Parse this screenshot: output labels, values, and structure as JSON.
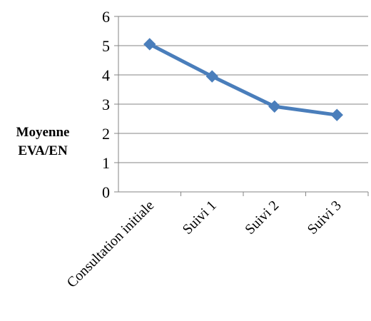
{
  "chart_data": {
    "type": "line",
    "categories": [
      "Consultation initiale",
      "Suivi 1",
      "Suivi 2",
      "Suivi 3"
    ],
    "series": [
      {
        "values": [
          5.05,
          3.95,
          2.92,
          2.63
        ]
      }
    ],
    "title": "",
    "xlabel": "",
    "ylabel_lines": [
      "Moyenne",
      "EVA/EN"
    ],
    "ylim": [
      0,
      6
    ],
    "yticks": [
      0,
      1,
      2,
      3,
      4,
      5,
      6
    ],
    "grid": true,
    "legend": "none",
    "line_color": "#4a7ebb",
    "grid_color": "#868686",
    "marker": "diamond"
  }
}
